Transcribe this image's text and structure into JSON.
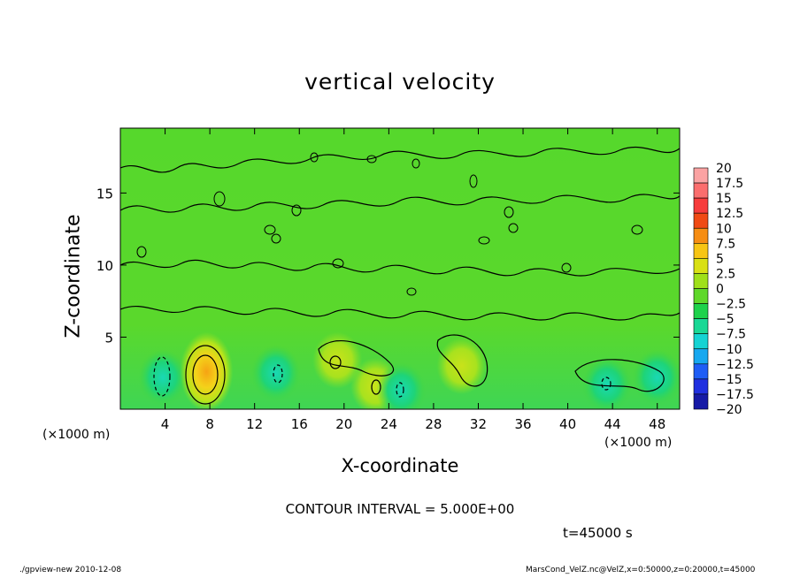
{
  "chart_data": {
    "type": "heatmap",
    "title": "vertical velocity",
    "xlabel": "X-coordinate",
    "ylabel": "Z-coordinate",
    "x_unit_label": "(×1000 m)",
    "x_unit_label_bottom": "(×1000 m)",
    "xlim": [
      0,
      50
    ],
    "ylim": [
      0,
      19.5
    ],
    "x_ticks": [
      4,
      8,
      12,
      16,
      20,
      24,
      28,
      32,
      36,
      40,
      44,
      48
    ],
    "y_ticks": [
      5,
      10,
      15
    ],
    "colorbar": {
      "levels": [
        20,
        17.5,
        15,
        12.5,
        10,
        7.5,
        5,
        2.5,
        0,
        -2.5,
        -5,
        -7.5,
        -10,
        -12.5,
        -15,
        -17.5,
        -20
      ],
      "colors": [
        "#fba3a3",
        "#fb6e6e",
        "#f73c3c",
        "#f04a14",
        "#f68d13",
        "#f7c514",
        "#d9e014",
        "#9fe019",
        "#5fd82a",
        "#1ed24b",
        "#19d895",
        "#15d3d3",
        "#17a8f0",
        "#1f5df5",
        "#2030e0",
        "#161aa6",
        "#6a1fb0"
      ]
    },
    "contour_interval_text": "CONTOUR INTERVAL = 5.000E+00",
    "time_text": "t=45000 s",
    "anomalies": [
      {
        "x": 3.8,
        "z": 2.2,
        "value": -6
      },
      {
        "x": 7.7,
        "z": 2.6,
        "value": 9
      },
      {
        "x": 13.9,
        "z": 2.5,
        "value": -5
      },
      {
        "x": 19.4,
        "z": 3.4,
        "value": 5
      },
      {
        "x": 22.8,
        "z": 1.6,
        "value": 5
      },
      {
        "x": 25.1,
        "z": 1.3,
        "value": -5
      },
      {
        "x": 43.5,
        "z": 1.7,
        "value": -5
      },
      {
        "x": 30.5,
        "z": 3.0,
        "value": 4
      },
      {
        "x": 48.0,
        "z": 2.2,
        "value": -3
      }
    ]
  },
  "footer": {
    "left": "./gpview-new   2010-12-08",
    "right": "MarsCond_VelZ.nc@VelZ,x=0:50000,z=0:20000,t=45000"
  }
}
